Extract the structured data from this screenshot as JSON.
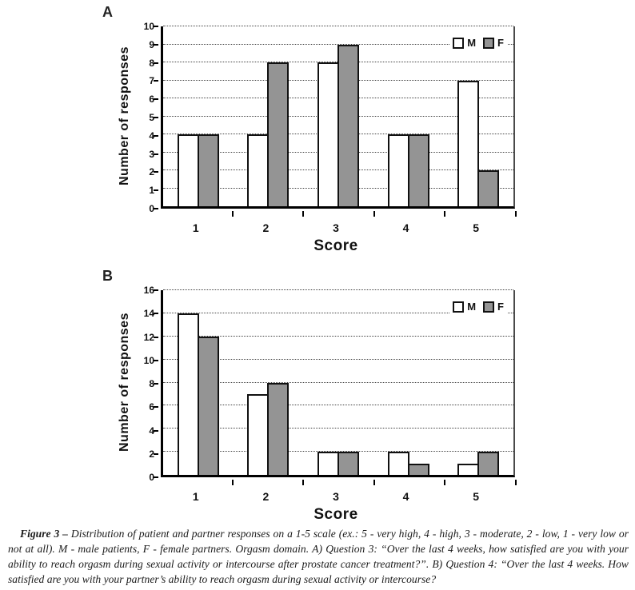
{
  "colors": {
    "male_fill": "#ffffff",
    "female_fill": "#949494",
    "bar_border": "#111111",
    "axis": "#000000",
    "gridline": "#444444",
    "background": "#ffffff"
  },
  "chart_data": [
    {
      "panel_label": "A",
      "type": "bar",
      "categories": [
        "1",
        "2",
        "3",
        "4",
        "5"
      ],
      "series": [
        {
          "name": "M",
          "fill": "#ffffff",
          "values": [
            4,
            4,
            8,
            4,
            7
          ]
        },
        {
          "name": "F",
          "fill": "#949494",
          "values": [
            4,
            8,
            9,
            4,
            2
          ]
        }
      ],
      "xlabel": "Score",
      "ylabel": "Number of responses",
      "ylim": [
        0,
        10
      ],
      "ytick_step": 1,
      "grid": "dotted-horizontal",
      "legend": [
        "M",
        "F"
      ],
      "legend_position": "top-right"
    },
    {
      "panel_label": "B",
      "type": "bar",
      "categories": [
        "1",
        "2",
        "3",
        "4",
        "5"
      ],
      "series": [
        {
          "name": "M",
          "fill": "#ffffff",
          "values": [
            14,
            7,
            2,
            2,
            1
          ]
        },
        {
          "name": "F",
          "fill": "#949494",
          "values": [
            12,
            8,
            2,
            1,
            2
          ]
        }
      ],
      "xlabel": "Score",
      "ylabel": "Number of responses",
      "ylim": [
        0,
        16
      ],
      "ytick_step": 2,
      "grid": "dotted-horizontal",
      "legend": [
        "M",
        "F"
      ],
      "legend_position": "top-right"
    }
  ],
  "caption": {
    "label": "Figure 3 – ",
    "text": "Distribution of patient and partner responses on a 1-5 scale (ex.: 5 - very high, 4 - high, 3 - moderate, 2 - low, 1 - very low or not at all). M - male patients, F - female partners. Orgasm domain. A) Question 3: “Over the last 4 weeks, how satisfied are you with your ability to reach orgasm during sexual activity or intercourse after prostate cancer treatment?”. B) Question 4: “Over the last 4 weeks. How satisfied are you with your partner’s ability to reach orgasm during sexual activity or intercourse?"
  }
}
